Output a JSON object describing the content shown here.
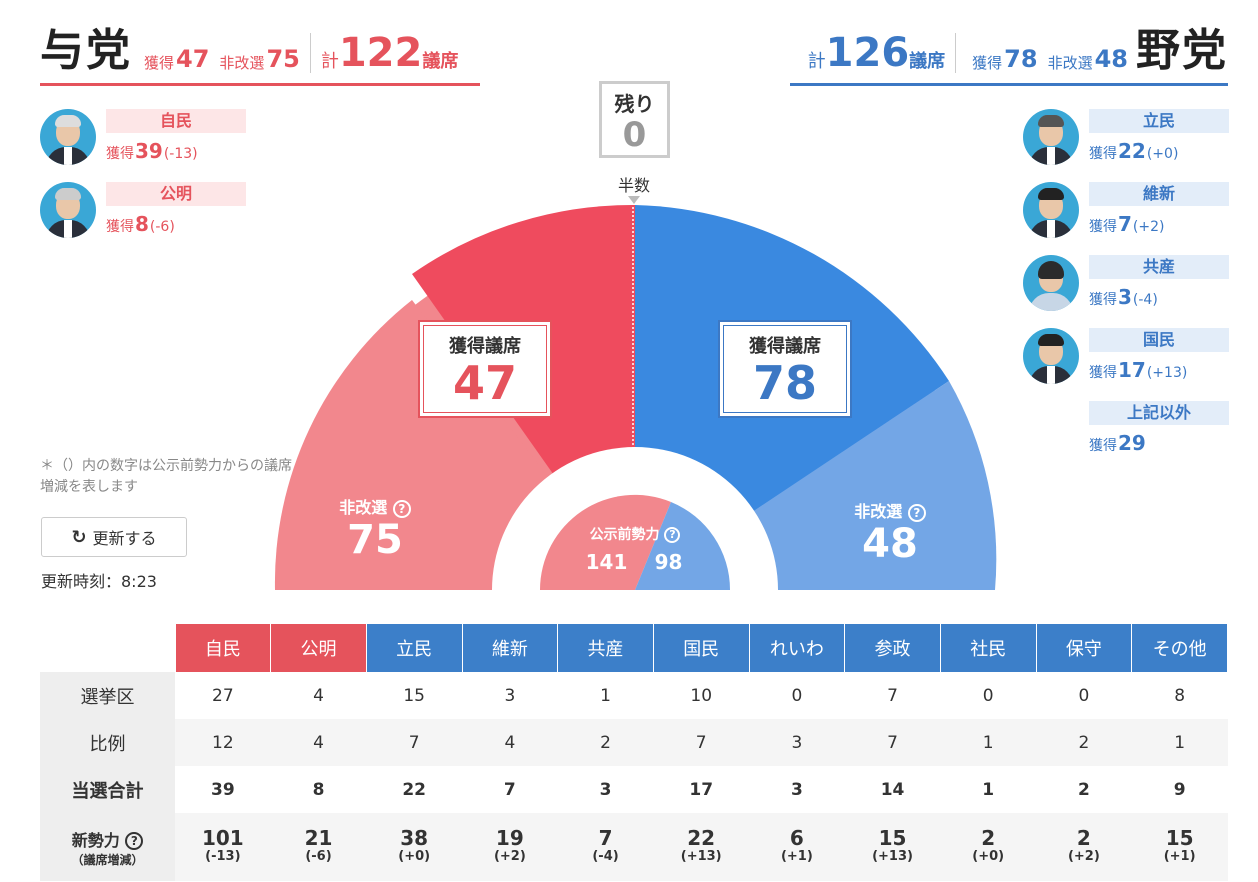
{
  "ruling": {
    "name": "与党",
    "won_label": "獲得",
    "won": "47",
    "nonup_label": "非改選",
    "nonup": "75",
    "total_label": "計",
    "total": "122",
    "unit": "議席"
  },
  "opposition": {
    "name": "野党",
    "won_label": "獲得",
    "won": "78",
    "nonup_label": "非改選",
    "nonup": "48",
    "total_label": "計",
    "total": "126",
    "unit": "議席"
  },
  "ruling_parties": [
    {
      "name": "自民",
      "won_label": "獲得",
      "won": "39",
      "diff": "(-13)"
    },
    {
      "name": "公明",
      "won_label": "獲得",
      "won": "8",
      "diff": "(-6)"
    }
  ],
  "opposition_parties": [
    {
      "name": "立民",
      "won_label": "獲得",
      "won": "22",
      "diff": "(+0)"
    },
    {
      "name": "維新",
      "won_label": "獲得",
      "won": "7",
      "diff": "(+2)"
    },
    {
      "name": "共産",
      "won_label": "獲得",
      "won": "3",
      "diff": "(-4)"
    },
    {
      "name": "国民",
      "won_label": "獲得",
      "won": "17",
      "diff": "(+13)"
    }
  ],
  "others": {
    "name": "上記以外",
    "won_label": "獲得",
    "won": "29"
  },
  "remaining": {
    "label": "残り",
    "value": "0"
  },
  "half_label": "半数",
  "gauge": {
    "won_label": "獲得議席",
    "ruling_won": "47",
    "opposition_won": "78",
    "nonup_label": "非改選",
    "ruling_nonup": "75",
    "opposition_nonup": "48",
    "pre_label": "公示前勢力",
    "pre_ruling": "141",
    "pre_opposition": "98"
  },
  "note": "＊（）内の数字は公示前勢力からの議席増減を表します",
  "refresh_label": "更新する",
  "updated": "更新時刻：8:23",
  "colors": {
    "ruling": "#e5535c",
    "ruling_light": "#f2878d",
    "opposition": "#3c7fc9",
    "opposition_light": "#73a6e6"
  },
  "table": {
    "columns": [
      "自民",
      "公明",
      "立民",
      "維新",
      "共産",
      "国民",
      "れいわ",
      "参政",
      "社民",
      "保守",
      "その他"
    ],
    "rows": [
      {
        "label": "選挙区",
        "values": [
          "27",
          "4",
          "15",
          "3",
          "1",
          "10",
          "0",
          "7",
          "0",
          "0",
          "8"
        ]
      },
      {
        "label": "比例",
        "values": [
          "12",
          "4",
          "7",
          "4",
          "2",
          "7",
          "3",
          "7",
          "1",
          "2",
          "1"
        ]
      },
      {
        "label": "当選合計",
        "values": [
          "39",
          "8",
          "22",
          "7",
          "3",
          "17",
          "3",
          "14",
          "1",
          "2",
          "9"
        ]
      }
    ],
    "new_power": {
      "label": "新勢力",
      "sub": "（議席増減）",
      "values": [
        "101",
        "21",
        "38",
        "19",
        "7",
        "22",
        "6",
        "15",
        "2",
        "2",
        "15"
      ],
      "diffs": [
        "(-13)",
        "(-6)",
        "(+0)",
        "(+2)",
        "(-4)",
        "(+13)",
        "(+1)",
        "(+13)",
        "(+0)",
        "(+2)",
        "(+1)"
      ]
    }
  }
}
